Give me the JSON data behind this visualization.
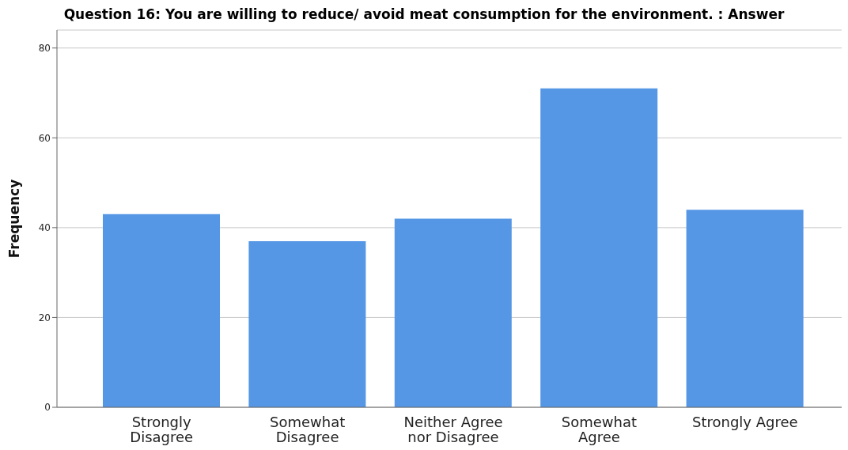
{
  "chart_data": {
    "type": "bar",
    "title": "Question 16: You are willing to reduce/ avoid meat consumption for the environment. : Answer",
    "ylabel": "Frequency",
    "categories": [
      "Strongly Disagree",
      "Somewhat Disagree",
      "Neither Agree nor Disagree",
      "Somewhat Agree",
      "Strongly Agree"
    ],
    "values": [
      43,
      37,
      42,
      71,
      44
    ],
    "color": "#5596e5",
    "ylim": [
      0,
      84
    ],
    "yticks": [
      0,
      20,
      40,
      60,
      80
    ],
    "grid": "y"
  }
}
